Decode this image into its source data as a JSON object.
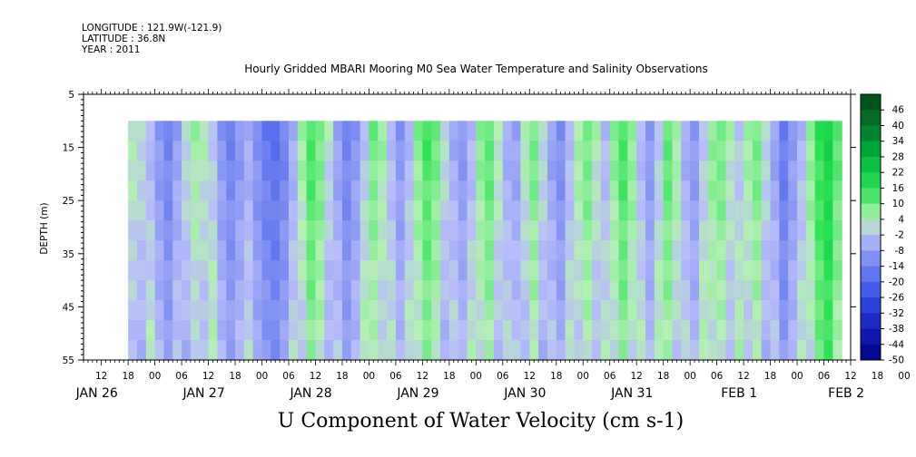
{
  "header": {
    "longitude": "LONGITUDE : 121.9W(-121.9)",
    "latitude": "LATITUDE : 36.8N",
    "year": "YEAR : 2011"
  },
  "chart_data": {
    "type": "heatmap",
    "title": "Hourly Gridded MBARI Mooring M0 Sea Water Temperature and Salinity Observations",
    "xlabel": "U Component of Water Velocity (cm s-1)",
    "ylabel": "DEPTH (m)",
    "ylim": [
      55,
      5
    ],
    "y_ticks": [
      5,
      15,
      25,
      35,
      45,
      55
    ],
    "x_range_hours": [
      "JAN 26 08:00",
      "FEB 2 12:00"
    ],
    "data_start": "JAN 26 17:00",
    "data_top_depth": 10,
    "hour_ticks": [
      "12",
      "18",
      "00",
      "06",
      "12",
      "18",
      "00",
      "06",
      "12",
      "18",
      "00",
      "06",
      "12",
      "18",
      "00",
      "06",
      "12",
      "18",
      "00",
      "06",
      "12",
      "18",
      "00",
      "06",
      "12",
      "18",
      "00",
      "06",
      "12",
      "18",
      "00",
      "06"
    ],
    "day_labels": [
      "JAN 26",
      "JAN 27",
      "JAN 28",
      "JAN 29",
      "JAN 30",
      "JAN 31",
      "FEB 1",
      "FEB 2"
    ],
    "colorbar": {
      "levels": [
        "46",
        "40",
        "34",
        "28",
        "22",
        "16",
        "10",
        "4",
        "-2",
        "-8",
        "-14",
        "-20",
        "-26",
        "-32",
        "-38",
        "-44",
        "-50"
      ],
      "range": [
        -50,
        52
      ]
    },
    "column_values": [
      {
        "t": "JAN 26 18",
        "v": 4
      },
      {
        "t": "JAN 26 20",
        "v": 2
      },
      {
        "t": "JAN 26 22",
        "v": -4
      },
      {
        "t": "JAN 27 00",
        "v": -10
      },
      {
        "t": "JAN 27 02",
        "v": -14
      },
      {
        "t": "JAN 27 04",
        "v": -8
      },
      {
        "t": "JAN 27 06",
        "v": 2
      },
      {
        "t": "JAN 27 08",
        "v": 6
      },
      {
        "t": "JAN 27 10",
        "v": 4
      },
      {
        "t": "JAN 27 12",
        "v": -2
      },
      {
        "t": "JAN 27 14",
        "v": -10
      },
      {
        "t": "JAN 27 16",
        "v": -14
      },
      {
        "t": "JAN 27 18",
        "v": -10
      },
      {
        "t": "JAN 27 20",
        "v": -6
      },
      {
        "t": "JAN 27 22",
        "v": -12
      },
      {
        "t": "JAN 28 00",
        "v": -16
      },
      {
        "t": "JAN 28 02",
        "v": -18
      },
      {
        "t": "JAN 28 04",
        "v": -14
      },
      {
        "t": "JAN 28 06",
        "v": -6
      },
      {
        "t": "JAN 28 08",
        "v": 6
      },
      {
        "t": "JAN 28 10",
        "v": 14
      },
      {
        "t": "JAN 28 12",
        "v": 10
      },
      {
        "t": "JAN 28 14",
        "v": 2
      },
      {
        "t": "JAN 28 16",
        "v": -8
      },
      {
        "t": "JAN 28 18",
        "v": -14
      },
      {
        "t": "JAN 28 20",
        "v": -10
      },
      {
        "t": "JAN 28 22",
        "v": -2
      },
      {
        "t": "JAN 29 00",
        "v": 10
      },
      {
        "t": "JAN 29 02",
        "v": 6
      },
      {
        "t": "JAN 29 04",
        "v": -4
      },
      {
        "t": "JAN 29 06",
        "v": -10
      },
      {
        "t": "JAN 29 08",
        "v": -4
      },
      {
        "t": "JAN 29 10",
        "v": 8
      },
      {
        "t": "JAN 29 12",
        "v": 14
      },
      {
        "t": "JAN 29 14",
        "v": 10
      },
      {
        "t": "JAN 29 16",
        "v": 2
      },
      {
        "t": "JAN 29 18",
        "v": -6
      },
      {
        "t": "JAN 29 20",
        "v": -10
      },
      {
        "t": "JAN 29 22",
        "v": -4
      },
      {
        "t": "JAN 30 00",
        "v": 8
      },
      {
        "t": "JAN 30 02",
        "v": 12
      },
      {
        "t": "JAN 30 04",
        "v": 4
      },
      {
        "t": "JAN 30 06",
        "v": -6
      },
      {
        "t": "JAN 30 08",
        "v": -8
      },
      {
        "t": "JAN 30 10",
        "v": 4
      },
      {
        "t": "JAN 30 12",
        "v": 10
      },
      {
        "t": "JAN 30 14",
        "v": 2
      },
      {
        "t": "JAN 30 16",
        "v": -8
      },
      {
        "t": "JAN 30 18",
        "v": -12
      },
      {
        "t": "JAN 30 20",
        "v": -4
      },
      {
        "t": "JAN 30 22",
        "v": 6
      },
      {
        "t": "JAN 31 00",
        "v": 10
      },
      {
        "t": "JAN 31 02",
        "v": 4
      },
      {
        "t": "JAN 31 04",
        "v": -4
      },
      {
        "t": "JAN 31 06",
        "v": 8
      },
      {
        "t": "JAN 31 08",
        "v": 14
      },
      {
        "t": "JAN 31 10",
        "v": 8
      },
      {
        "t": "JAN 31 12",
        "v": -4
      },
      {
        "t": "JAN 31 14",
        "v": -10
      },
      {
        "t": "JAN 31 16",
        "v": -2
      },
      {
        "t": "JAN 31 18",
        "v": 12
      },
      {
        "t": "JAN 31 20",
        "v": 6
      },
      {
        "t": "JAN 31 22",
        "v": -6
      },
      {
        "t": "FEB 1 00",
        "v": -10
      },
      {
        "t": "FEB 1 02",
        "v": -2
      },
      {
        "t": "FEB 1 04",
        "v": 8
      },
      {
        "t": "FEB 1 06",
        "v": 10
      },
      {
        "t": "FEB 1 08",
        "v": 4
      },
      {
        "t": "FEB 1 10",
        "v": -2
      },
      {
        "t": "FEB 1 12",
        "v": 6
      },
      {
        "t": "FEB 1 14",
        "v": 10
      },
      {
        "t": "FEB 1 16",
        "v": 2
      },
      {
        "t": "FEB 1 18",
        "v": -8
      },
      {
        "t": "FEB 1 20",
        "v": -16
      },
      {
        "t": "FEB 1 22",
        "v": -10
      },
      {
        "t": "FEB 2 00",
        "v": -4
      },
      {
        "t": "FEB 2 02",
        "v": 8
      },
      {
        "t": "FEB 2 04",
        "v": 16
      },
      {
        "t": "FEB 2 06",
        "v": 20
      },
      {
        "t": "FEB 2 08",
        "v": 12
      }
    ]
  }
}
